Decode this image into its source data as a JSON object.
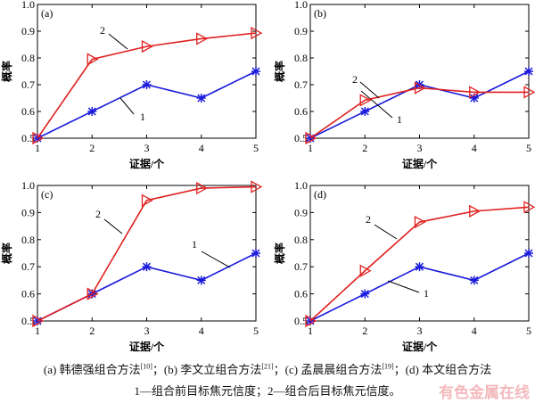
{
  "chart_data": [
    {
      "type": "line",
      "panel_label": "(a)",
      "xlabel": "证据/个",
      "ylabel": "概率",
      "x": [
        1,
        2,
        3,
        4,
        5
      ],
      "xlim": [
        1,
        5
      ],
      "ylim": [
        0.5,
        1.0
      ],
      "yticks": [
        "0.5",
        "0.6",
        "0.7",
        "0.8",
        "0.9",
        "1.0"
      ],
      "xticks": [
        "1",
        "2",
        "3",
        "4",
        "5"
      ],
      "series": [
        {
          "name": "1",
          "marker": "asterisk",
          "color": "#1a1adc",
          "values": [
            0.5,
            0.6,
            0.7,
            0.65,
            0.75
          ]
        },
        {
          "name": "2",
          "marker": "triangle-right",
          "color": "#e02020",
          "values": [
            0.5,
            0.795,
            0.843,
            0.872,
            0.893
          ]
        }
      ]
    },
    {
      "type": "line",
      "panel_label": "(b)",
      "xlabel": "证据/个",
      "ylabel": "概率",
      "x": [
        1,
        2,
        3,
        4,
        5
      ],
      "xlim": [
        1,
        5
      ],
      "ylim": [
        0.5,
        1.0
      ],
      "yticks": [
        "0.5",
        "0.6",
        "0.7",
        "0.8",
        "0.9",
        "1.0"
      ],
      "xticks": [
        "1",
        "2",
        "3",
        "4",
        "5"
      ],
      "series": [
        {
          "name": "1",
          "marker": "asterisk",
          "color": "#1a1adc",
          "values": [
            0.5,
            0.6,
            0.7,
            0.65,
            0.75
          ]
        },
        {
          "name": "2",
          "marker": "triangle-right",
          "color": "#e02020",
          "values": [
            0.5,
            0.642,
            0.688,
            0.672,
            0.672
          ]
        }
      ]
    },
    {
      "type": "line",
      "panel_label": "(c)",
      "xlabel": "证据/个",
      "ylabel": "概率",
      "x": [
        1,
        2,
        3,
        4,
        5
      ],
      "xlim": [
        1,
        5
      ],
      "ylim": [
        0.5,
        1.0
      ],
      "yticks": [
        "0.5",
        "0.6",
        "0.7",
        "0.8",
        "0.9",
        "1.0"
      ],
      "xticks": [
        "1",
        "2",
        "3",
        "4",
        "5"
      ],
      "series": [
        {
          "name": "1",
          "marker": "asterisk",
          "color": "#1a1adc",
          "values": [
            0.5,
            0.6,
            0.7,
            0.65,
            0.75
          ]
        },
        {
          "name": "2",
          "marker": "triangle-right",
          "color": "#e02020",
          "values": [
            0.5,
            0.6,
            0.945,
            0.99,
            0.995
          ]
        }
      ]
    },
    {
      "type": "line",
      "panel_label": "(d)",
      "xlabel": "证据/个",
      "ylabel": "概率",
      "x": [
        1,
        2,
        3,
        4,
        5
      ],
      "xlim": [
        1,
        5
      ],
      "ylim": [
        0.5,
        1.0
      ],
      "yticks": [
        "0.5",
        "0.6",
        "0.7",
        "0.8",
        "0.9",
        "1.0"
      ],
      "xticks": [
        "1",
        "2",
        "3",
        "4",
        "5"
      ],
      "series": [
        {
          "name": "1",
          "marker": "asterisk",
          "color": "#1a1adc",
          "values": [
            0.5,
            0.6,
            0.7,
            0.65,
            0.75
          ]
        },
        {
          "name": "2",
          "marker": "triangle-right",
          "color": "#e02020",
          "values": [
            0.5,
            0.685,
            0.865,
            0.905,
            0.92
          ]
        }
      ]
    }
  ],
  "caption": {
    "line1_parts": [
      "(a) 韩德强组合方法",
      "[10]",
      "；(b) 李文立组合方法",
      "[21]",
      "；(c) 孟晨晨组合方法",
      "[19]",
      "；(d) 本文组合方法"
    ],
    "line2": "1—组合前目标焦元信度；2—组合后目标焦元信度。"
  },
  "watermark": "有色金属在线"
}
